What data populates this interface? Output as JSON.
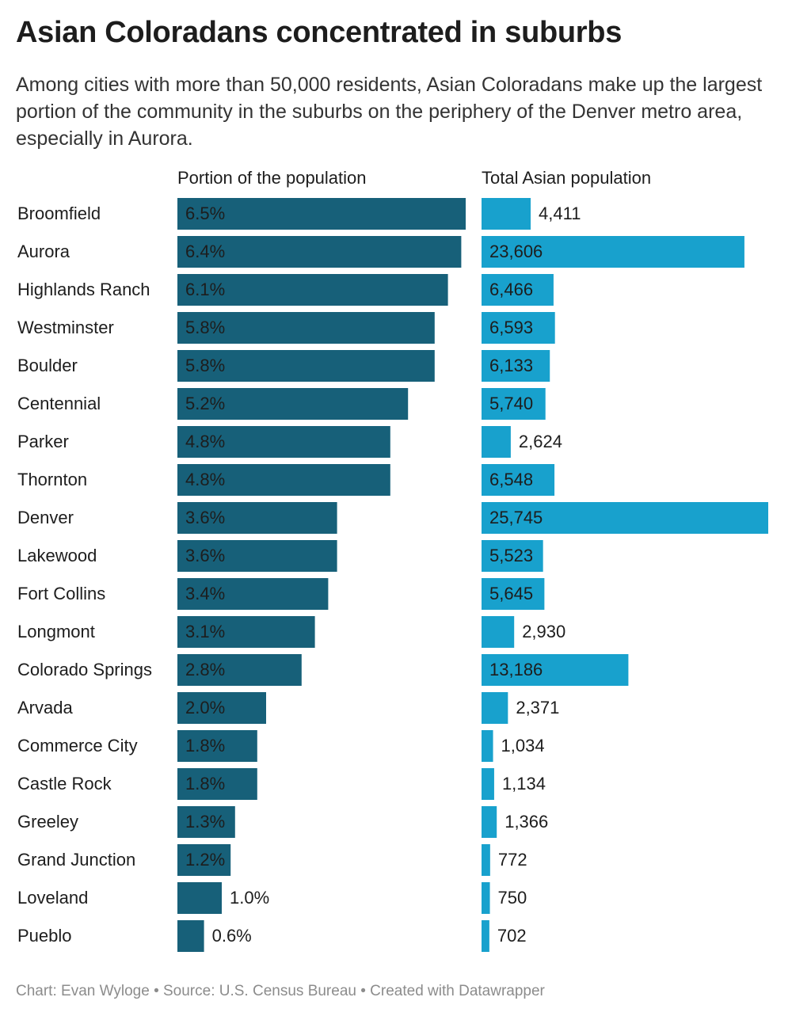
{
  "chart_data": {
    "type": "bar",
    "title": "Asian Coloradans concentrated in suburbs",
    "subtitle": "Among cities with more than 50,000 residents, Asian Coloradans make up the largest portion of the community in the suburbs on the periphery of the Denver metro area, especially in Aurora.",
    "note": "Chart: Evan Wyloge • Source: U.S. Census Bureau • Created with Datawrapper",
    "categories": [
      "Broomfield",
      "Aurora",
      "Highlands Ranch",
      "Westminster",
      "Boulder",
      "Centennial",
      "Parker",
      "Thornton",
      "Denver",
      "Lakewood",
      "Fort Collins",
      "Longmont",
      "Colorado Springs",
      "Arvada",
      "Commerce City",
      "Castle Rock",
      "Greeley",
      "Grand Junction",
      "Loveland",
      "Pueblo"
    ],
    "series": [
      {
        "name": "Portion of the population",
        "color": "#176079",
        "values": [
          6.5,
          6.4,
          6.1,
          5.8,
          5.8,
          5.2,
          4.8,
          4.8,
          3.6,
          3.6,
          3.4,
          3.1,
          2.8,
          2.0,
          1.8,
          1.8,
          1.3,
          1.2,
          1.0,
          0.6
        ],
        "value_labels": [
          "6.5%",
          "6.4%",
          "6.1%",
          "5.8%",
          "5.8%",
          "5.2%",
          "4.8%",
          "4.8%",
          "3.6%",
          "3.6%",
          "3.4%",
          "3.1%",
          "2.8%",
          "2.0%",
          "1.8%",
          "1.8%",
          "1.3%",
          "1.2%",
          "1.0%",
          "0.6%"
        ]
      },
      {
        "name": "Total Asian population",
        "color": "#18a1cd",
        "values": [
          4411,
          23606,
          6466,
          6593,
          6133,
          5740,
          2624,
          6548,
          25745,
          5523,
          5645,
          2930,
          13186,
          2371,
          1034,
          1134,
          1366,
          772,
          750,
          702
        ],
        "value_labels": [
          "4,411",
          "23,606",
          "6,466",
          "6,593",
          "6,133",
          "5,740",
          "2,624",
          "6,548",
          "25,745",
          "5,523",
          "5,645",
          "2,930",
          "13,186",
          "2,371",
          "1,034",
          "1,134",
          "1,366",
          "772",
          "750",
          "702"
        ]
      }
    ]
  }
}
